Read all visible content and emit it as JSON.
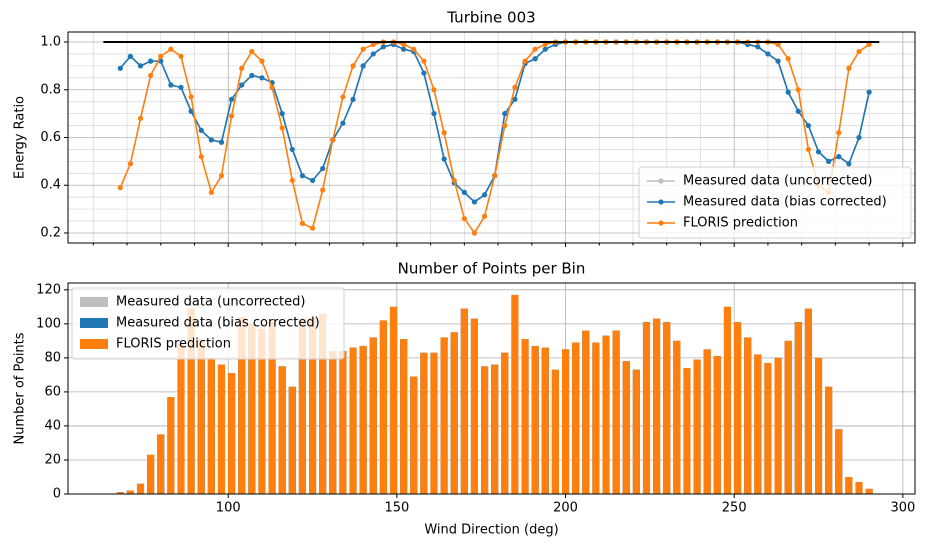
{
  "chart_data": [
    {
      "type": "line",
      "title": "Turbine 003",
      "y_label": "Energy Ratio",
      "categories": [
        68,
        71,
        74,
        77,
        80,
        83,
        86,
        89,
        92,
        95,
        98,
        101,
        104,
        107,
        110,
        113,
        116,
        119,
        122,
        125,
        128,
        131,
        134,
        137,
        140,
        143,
        146,
        149,
        152,
        155,
        158,
        161,
        164,
        167,
        170,
        173,
        176,
        179,
        182,
        185,
        188,
        191,
        194,
        197,
        200,
        203,
        206,
        209,
        212,
        215,
        218,
        221,
        224,
        227,
        230,
        233,
        236,
        239,
        242,
        245,
        248,
        251,
        254,
        257,
        260,
        263,
        266,
        269,
        272,
        275,
        278,
        281,
        284,
        287,
        290
      ],
      "series": [
        {
          "name": "Measured data (uncorrected)",
          "color": "#bfbfbf",
          "values": [
            0.89,
            0.94,
            0.9,
            0.92,
            0.92,
            0.82,
            0.81,
            0.71,
            0.63,
            0.59,
            0.58,
            0.76,
            0.82,
            0.86,
            0.85,
            0.83,
            0.7,
            0.55,
            0.44,
            0.42,
            0.47,
            0.59,
            0.66,
            0.76,
            0.9,
            0.95,
            0.98,
            0.99,
            0.97,
            0.96,
            0.87,
            0.7,
            0.51,
            0.41,
            0.37,
            0.33,
            0.36,
            0.44,
            0.7,
            0.76,
            0.91,
            0.93,
            0.97,
            0.99,
            1.0,
            1.0,
            1.0,
            1.0,
            1.0,
            1.0,
            1.0,
            1.0,
            1.0,
            1.0,
            1.0,
            1.0,
            1.0,
            1.0,
            1.0,
            1.0,
            1.0,
            1.0,
            0.99,
            0.98,
            0.95,
            0.92,
            0.79,
            0.71,
            0.65,
            0.54,
            0.5,
            0.52,
            0.49,
            0.6,
            0.79
          ]
        },
        {
          "name": "Measured data (bias corrected)",
          "color": "#1f77b4",
          "values": [
            0.89,
            0.94,
            0.9,
            0.92,
            0.92,
            0.82,
            0.81,
            0.71,
            0.63,
            0.59,
            0.58,
            0.76,
            0.82,
            0.86,
            0.85,
            0.83,
            0.7,
            0.55,
            0.44,
            0.42,
            0.47,
            0.59,
            0.66,
            0.76,
            0.9,
            0.95,
            0.98,
            0.99,
            0.97,
            0.96,
            0.87,
            0.7,
            0.51,
            0.41,
            0.37,
            0.33,
            0.36,
            0.44,
            0.7,
            0.76,
            0.91,
            0.93,
            0.97,
            0.99,
            1.0,
            1.0,
            1.0,
            1.0,
            1.0,
            1.0,
            1.0,
            1.0,
            1.0,
            1.0,
            1.0,
            1.0,
            1.0,
            1.0,
            1.0,
            1.0,
            1.0,
            1.0,
            0.99,
            0.98,
            0.95,
            0.92,
            0.79,
            0.71,
            0.65,
            0.54,
            0.5,
            0.52,
            0.49,
            0.6,
            0.79
          ]
        },
        {
          "name": "FLORIS prediction",
          "color": "#ff7f0e",
          "values": [
            0.39,
            0.49,
            0.68,
            0.86,
            0.94,
            0.97,
            0.94,
            0.77,
            0.52,
            0.37,
            0.44,
            0.69,
            0.89,
            0.96,
            0.92,
            0.81,
            0.64,
            0.42,
            0.24,
            0.22,
            0.38,
            0.59,
            0.77,
            0.9,
            0.97,
            0.99,
            1.0,
            1.0,
            0.99,
            0.97,
            0.92,
            0.8,
            0.62,
            0.42,
            0.26,
            0.2,
            0.27,
            0.44,
            0.65,
            0.81,
            0.92,
            0.97,
            0.99,
            1.0,
            1.0,
            1.0,
            1.0,
            1.0,
            1.0,
            1.0,
            1.0,
            1.0,
            1.0,
            1.0,
            1.0,
            1.0,
            1.0,
            1.0,
            1.0,
            1.0,
            1.0,
            1.0,
            1.0,
            1.0,
            1.0,
            0.99,
            0.93,
            0.8,
            0.55,
            0.4,
            0.37,
            0.62,
            0.89,
            0.96,
            0.99
          ]
        }
      ],
      "hline": {
        "y": 1,
        "xmin": 63,
        "xmax": 293,
        "color": "#000000"
      },
      "xlim": [
        52.5,
        303.6
      ],
      "xticks": [
        100,
        150,
        200,
        250,
        300
      ],
      "show_xticklabels": false,
      "xminorticks": [
        60,
        70,
        80,
        90,
        110,
        120,
        130,
        140,
        160,
        170,
        180,
        190,
        210,
        220,
        230,
        240,
        260,
        270,
        280,
        290
      ],
      "ylim": [
        0.158,
        1.042
      ],
      "yticks": [
        0.2,
        0.4,
        0.6,
        0.8,
        {
          "value": 1,
          "label": "1.0"
        }
      ],
      "yminorticks": [
        0.25,
        0.3,
        0.35,
        0.45,
        0.5,
        0.55,
        0.65,
        0.7,
        0.75,
        0.85,
        0.9,
        0.95
      ],
      "grid": true,
      "legend": "lower right"
    },
    {
      "type": "bar",
      "title": "Number of Points per Bin",
      "x_label": "Wind Direction (deg)",
      "y_label": "Number of Points",
      "categories": [
        68,
        71,
        74,
        77,
        80,
        83,
        86,
        89,
        92,
        95,
        98,
        101,
        104,
        107,
        110,
        113,
        116,
        119,
        122,
        125,
        128,
        131,
        134,
        137,
        140,
        143,
        146,
        149,
        152,
        155,
        158,
        161,
        164,
        167,
        170,
        173,
        176,
        179,
        182,
        185,
        188,
        191,
        194,
        197,
        200,
        203,
        206,
        209,
        212,
        215,
        218,
        221,
        224,
        227,
        230,
        233,
        236,
        239,
        242,
        245,
        248,
        251,
        254,
        257,
        260,
        263,
        266,
        269,
        272,
        275,
        278,
        281,
        284,
        287,
        290
      ],
      "series": [
        {
          "name": "Measured data (uncorrected)",
          "color": "#bfbfbf",
          "values": [
            1,
            2,
            6,
            23,
            35,
            57,
            88,
            109,
            91,
            80,
            76,
            71,
            104,
            100,
            97,
            101,
            75,
            63,
            103,
            104,
            106,
            84,
            84,
            86,
            87,
            92,
            102,
            110,
            91,
            69,
            83,
            83,
            92,
            95,
            109,
            103,
            75,
            76,
            83,
            117,
            91,
            87,
            86,
            73,
            85,
            89,
            96,
            89,
            93,
            96,
            78,
            73,
            101,
            103,
            101,
            90,
            74,
            79,
            85,
            81,
            110,
            101,
            92,
            82,
            77,
            80,
            90,
            101,
            109,
            80,
            63,
            38,
            10,
            7,
            3
          ]
        },
        {
          "name": "Measured data (bias corrected)",
          "color": "#1f77b4",
          "values": [
            1,
            2,
            6,
            23,
            35,
            57,
            88,
            109,
            91,
            80,
            76,
            71,
            104,
            100,
            97,
            101,
            75,
            63,
            103,
            104,
            106,
            84,
            84,
            86,
            87,
            92,
            102,
            110,
            91,
            69,
            83,
            83,
            92,
            95,
            109,
            103,
            75,
            76,
            83,
            117,
            91,
            87,
            86,
            73,
            85,
            89,
            96,
            89,
            93,
            96,
            78,
            73,
            101,
            103,
            101,
            90,
            74,
            79,
            85,
            81,
            110,
            101,
            92,
            82,
            77,
            80,
            90,
            101,
            109,
            80,
            63,
            38,
            10,
            7,
            3
          ]
        },
        {
          "name": "FLORIS prediction",
          "color": "#ff7f0e",
          "values": [
            1,
            2,
            6,
            23,
            35,
            57,
            88,
            109,
            91,
            80,
            76,
            71,
            104,
            100,
            97,
            101,
            75,
            63,
            103,
            104,
            106,
            84,
            84,
            86,
            87,
            92,
            102,
            110,
            91,
            69,
            83,
            83,
            92,
            95,
            109,
            103,
            75,
            76,
            83,
            117,
            91,
            87,
            86,
            73,
            85,
            89,
            96,
            89,
            93,
            96,
            78,
            73,
            101,
            103,
            101,
            90,
            74,
            79,
            85,
            81,
            110,
            101,
            92,
            82,
            77,
            80,
            90,
            101,
            109,
            80,
            63,
            38,
            10,
            7,
            3
          ]
        }
      ],
      "bar_width": 2.1,
      "xlim": [
        52.5,
        303.6
      ],
      "xticks": [
        100,
        150,
        200,
        250,
        300
      ],
      "ylim": [
        0,
        124
      ],
      "yticks": [
        0,
        20,
        40,
        60,
        80,
        100,
        120
      ],
      "grid": true,
      "legend": "upper left"
    }
  ]
}
